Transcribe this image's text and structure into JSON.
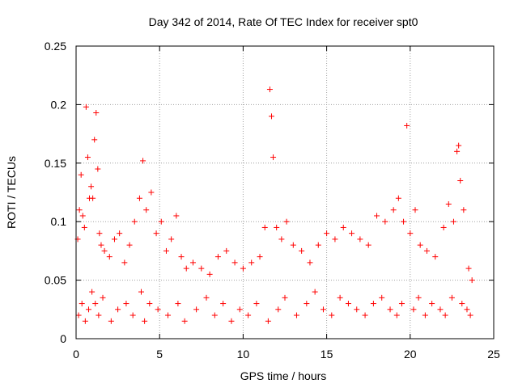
{
  "chart_data": {
    "type": "scatter",
    "title": "Day 342 of 2014, Rate Of TEC Index for receiver spt0",
    "xlabel": "GPS time / hours",
    "ylabel": "ROTI / TECUs",
    "xlim": [
      0,
      25
    ],
    "ylim": [
      0,
      0.25
    ],
    "x_ticks": [
      0,
      5,
      10,
      15,
      20,
      25
    ],
    "x_tick_labels": [
      "0",
      "5",
      "10",
      "15",
      "20",
      "25"
    ],
    "y_ticks": [
      0,
      0.05,
      0.1,
      0.15,
      0.2,
      0.25
    ],
    "y_tick_labels": [
      "0",
      "0.05",
      "0.1",
      "0.15",
      "0.2",
      "0.25"
    ],
    "grid": true,
    "marker": "+",
    "marker_color": "#ff0000",
    "series": [
      {
        "name": "spt0",
        "x": [
          0.1,
          0.2,
          0.3,
          0.4,
          0.5,
          0.6,
          0.7,
          0.8,
          0.9,
          1.0,
          1.1,
          1.2,
          1.3,
          1.4,
          1.5,
          1.7,
          2.0,
          2.3,
          2.6,
          2.9,
          3.2,
          3.5,
          3.8,
          4.0,
          4.2,
          4.5,
          4.8,
          5.1,
          5.4,
          5.7,
          6.0,
          6.3,
          6.6,
          7.0,
          7.5,
          8.0,
          8.5,
          9.0,
          9.5,
          10.0,
          10.5,
          11.0,
          11.3,
          11.6,
          11.7,
          11.8,
          12.0,
          12.3,
          12.6,
          13.0,
          13.5,
          14.0,
          14.5,
          15.0,
          15.5,
          16.0,
          16.5,
          17.0,
          17.5,
          18.0,
          18.5,
          19.0,
          19.3,
          19.6,
          19.8,
          20.0,
          20.3,
          20.6,
          21.0,
          21.5,
          22.0,
          22.3,
          22.6,
          22.8,
          22.9,
          23.0,
          23.2,
          23.5,
          23.7,
          0.15,
          0.35,
          0.55,
          0.75,
          0.95,
          1.15,
          1.35,
          1.6,
          2.1,
          2.5,
          3.0,
          3.4,
          3.9,
          4.1,
          4.4,
          4.9,
          5.5,
          6.1,
          6.5,
          7.2,
          7.8,
          8.3,
          8.8,
          9.3,
          9.8,
          10.3,
          10.8,
          11.5,
          12.1,
          12.5,
          13.2,
          13.8,
          14.3,
          14.8,
          15.3,
          15.8,
          16.3,
          16.8,
          17.3,
          17.8,
          18.3,
          18.8,
          19.2,
          19.5,
          20.2,
          20.5,
          20.9,
          21.3,
          21.8,
          22.1,
          22.5,
          23.1,
          23.4,
          23.6
        ],
        "y": [
          0.085,
          0.11,
          0.14,
          0.105,
          0.095,
          0.198,
          0.155,
          0.12,
          0.13,
          0.12,
          0.17,
          0.193,
          0.145,
          0.09,
          0.08,
          0.075,
          0.07,
          0.085,
          0.09,
          0.065,
          0.08,
          0.1,
          0.12,
          0.152,
          0.11,
          0.125,
          0.09,
          0.1,
          0.075,
          0.085,
          0.105,
          0.07,
          0.06,
          0.065,
          0.06,
          0.055,
          0.07,
          0.075,
          0.065,
          0.06,
          0.065,
          0.07,
          0.095,
          0.213,
          0.19,
          0.155,
          0.095,
          0.085,
          0.1,
          0.08,
          0.075,
          0.065,
          0.08,
          0.09,
          0.085,
          0.095,
          0.09,
          0.085,
          0.08,
          0.105,
          0.1,
          0.11,
          0.12,
          0.1,
          0.182,
          0.09,
          0.11,
          0.08,
          0.075,
          0.07,
          0.095,
          0.115,
          0.1,
          0.16,
          0.165,
          0.135,
          0.11,
          0.06,
          0.05,
          0.02,
          0.03,
          0.015,
          0.025,
          0.04,
          0.03,
          0.02,
          0.035,
          0.015,
          0.025,
          0.03,
          0.02,
          0.04,
          0.015,
          0.03,
          0.025,
          0.02,
          0.03,
          0.015,
          0.025,
          0.035,
          0.02,
          0.03,
          0.015,
          0.025,
          0.02,
          0.03,
          0.015,
          0.025,
          0.035,
          0.02,
          0.03,
          0.04,
          0.025,
          0.02,
          0.035,
          0.03,
          0.025,
          0.02,
          0.03,
          0.035,
          0.025,
          0.02,
          0.03,
          0.025,
          0.035,
          0.02,
          0.03,
          0.025,
          0.02,
          0.035,
          0.03,
          0.025,
          0.02
        ]
      }
    ]
  }
}
